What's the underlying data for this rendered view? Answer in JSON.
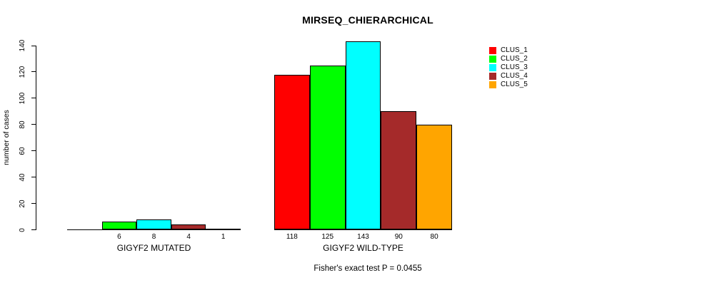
{
  "chart_data": {
    "type": "bar",
    "title": "MIRSEQ_CHIERARCHICAL",
    "ylabel": "number of cases",
    "ylim": [
      0,
      140
    ],
    "yticks": [
      0,
      20,
      40,
      60,
      80,
      100,
      120,
      140
    ],
    "grid": false,
    "legend_position": "top-right",
    "categories": [
      "GIGYF2 MUTATED",
      "GIGYF2 WILD-TYPE"
    ],
    "series": [
      {
        "name": "CLUS_1",
        "color": "#FF0000",
        "values": [
          null,
          118
        ]
      },
      {
        "name": "CLUS_2",
        "color": "#00FF00",
        "values": [
          6,
          125
        ]
      },
      {
        "name": "CLUS_3",
        "color": "#00FFFF",
        "values": [
          8,
          143
        ]
      },
      {
        "name": "CLUS_4",
        "color": "#A52A2A",
        "values": [
          4,
          90
        ]
      },
      {
        "name": "CLUS_5",
        "color": "#FFA500",
        "values": [
          1,
          80
        ]
      }
    ],
    "bar_value_labels": [
      [
        "",
        "6",
        "8",
        "4",
        "1"
      ],
      [
        "118",
        "125",
        "143",
        "90",
        "80"
      ]
    ],
    "annotation": "Fisher's exact test P = 0.0455"
  }
}
